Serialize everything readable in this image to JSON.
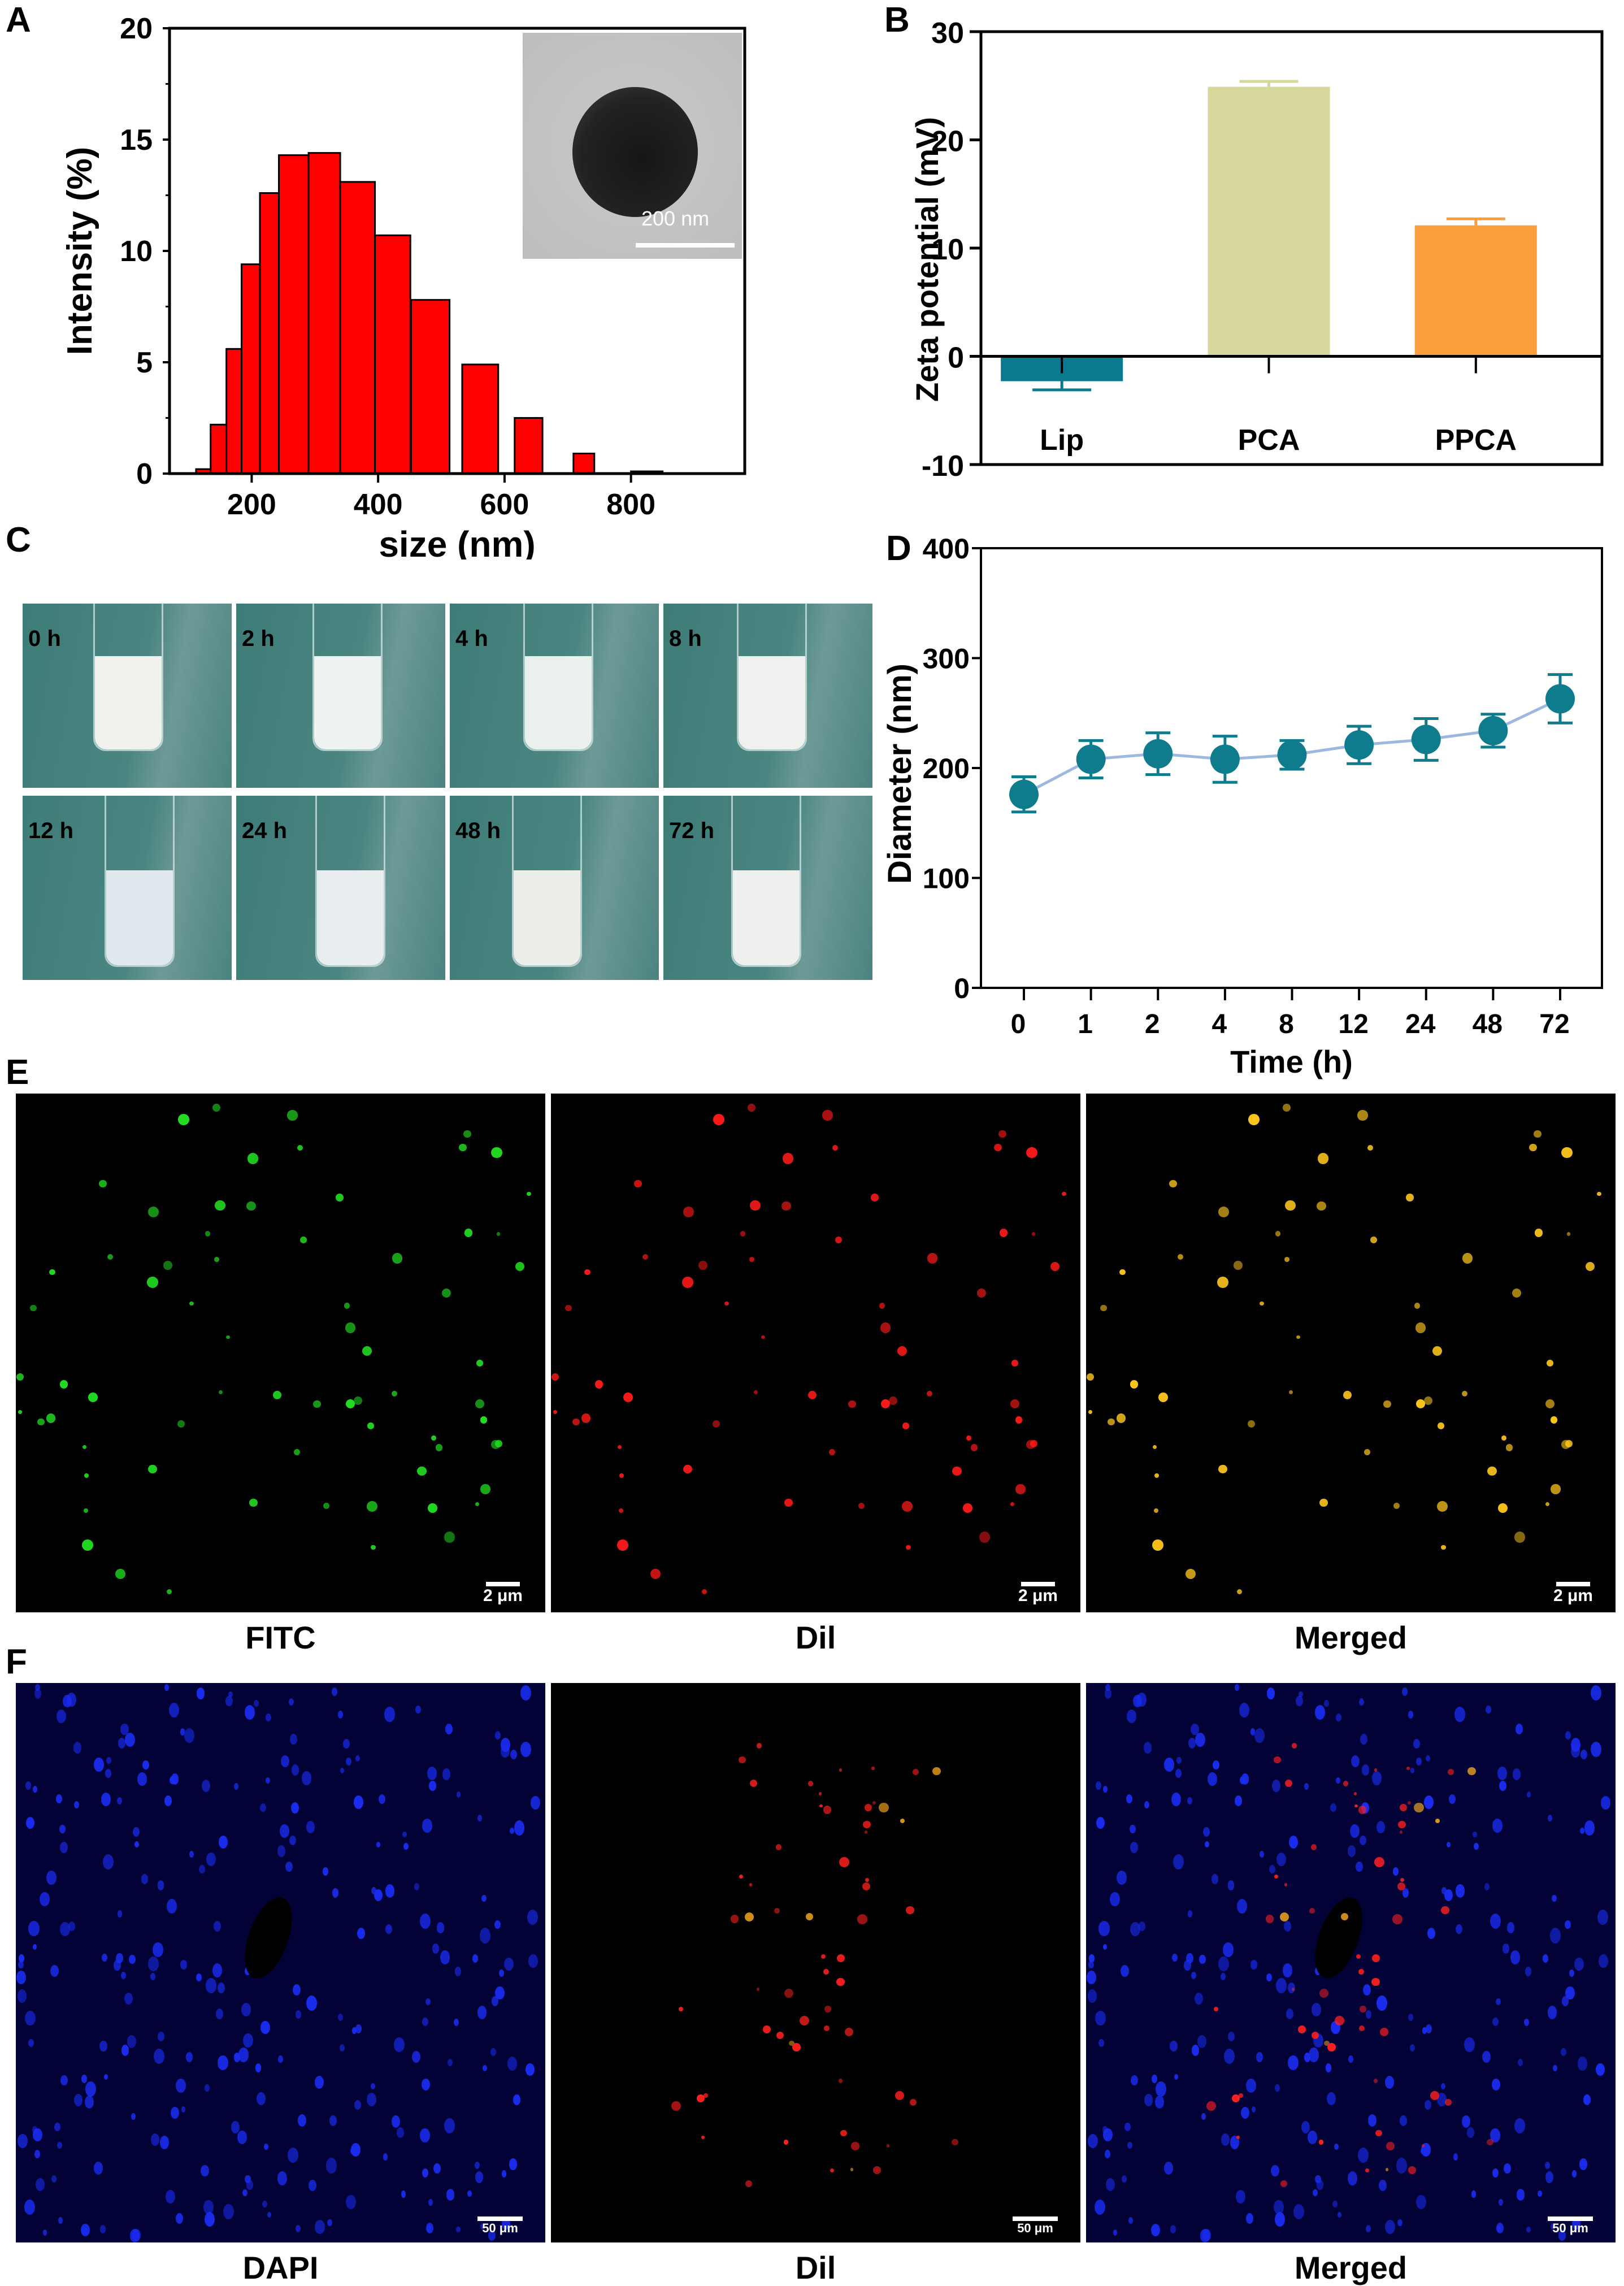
{
  "panels": {
    "A": "A",
    "B": "B",
    "C": "C",
    "D": "D",
    "E": "E",
    "F": "F"
  },
  "chart_data": [
    {
      "id": "A",
      "type": "bar",
      "title": "",
      "xlabel": "size (nm)",
      "ylabel": "Intensity (%)",
      "xlim": [
        70,
        980
      ],
      "ylim": [
        0,
        20
      ],
      "xticks": [
        200,
        400,
        600,
        800
      ],
      "yticks": [
        0,
        5,
        10,
        15,
        20
      ],
      "bins": [
        {
          "from": 112,
          "to": 135,
          "value": 0.2
        },
        {
          "from": 135,
          "to": 160,
          "value": 2.2
        },
        {
          "from": 160,
          "to": 184,
          "value": 5.6
        },
        {
          "from": 184,
          "to": 213,
          "value": 9.4
        },
        {
          "from": 213,
          "to": 243,
          "value": 12.6
        },
        {
          "from": 243,
          "to": 290,
          "value": 14.3
        },
        {
          "from": 290,
          "to": 340,
          "value": 14.4
        },
        {
          "from": 340,
          "to": 395,
          "value": 13.1
        },
        {
          "from": 395,
          "to": 451,
          "value": 10.7
        },
        {
          "from": 452,
          "to": 513,
          "value": 7.8
        },
        {
          "from": 533,
          "to": 590,
          "value": 4.9
        },
        {
          "from": 616,
          "to": 660,
          "value": 2.5
        },
        {
          "from": 709,
          "to": 742,
          "value": 0.9
        },
        {
          "from": 800,
          "to": 850,
          "value": 0.1
        }
      ],
      "bar_color": "#ff0000",
      "inset": {
        "scale_label": "200 nm"
      }
    },
    {
      "id": "B",
      "type": "bar",
      "title": "",
      "xlabel": "",
      "ylabel": "Zeta potential (mV)",
      "ylim": [
        -10,
        30
      ],
      "yticks": [
        -10,
        0,
        10,
        20,
        30
      ],
      "categories": [
        "Lip",
        "PCA",
        "PPCA"
      ],
      "values": [
        -2.3,
        24.9,
        12.1
      ],
      "errors": [
        0.8,
        0.5,
        0.6
      ],
      "colors": [
        "#0a7a8f",
        "#d6d79a",
        "#fb9e3d"
      ]
    },
    {
      "id": "D",
      "type": "line",
      "title": "",
      "xlabel": "Time (h)",
      "ylabel": "Diameter (nm)",
      "ylim": [
        0,
        400
      ],
      "yticks": [
        0,
        100,
        200,
        300,
        400
      ],
      "categories": [
        "0",
        "1",
        "2",
        "4",
        "8",
        "12",
        "24",
        "48",
        "72"
      ],
      "values": [
        176,
        208,
        213,
        208,
        212,
        221,
        226,
        234,
        263
      ],
      "errors": [
        16,
        17,
        19,
        21,
        13,
        17,
        19,
        15,
        22
      ],
      "marker_color": "#0e7c8c",
      "line_color": "#9db8e0"
    }
  ],
  "photos": {
    "labels": [
      "0 h",
      "2 h",
      "4 h",
      "8 h",
      "12 h",
      "24 h",
      "48 h",
      "72 h"
    ]
  },
  "fluorescence_E": {
    "captions": [
      "FITC",
      "Dil",
      "Merged"
    ],
    "scale_label": "2 μm"
  },
  "fluorescence_F": {
    "captions": [
      "DAPI",
      "Dil",
      "Merged"
    ],
    "scale_label": "50 μm"
  }
}
